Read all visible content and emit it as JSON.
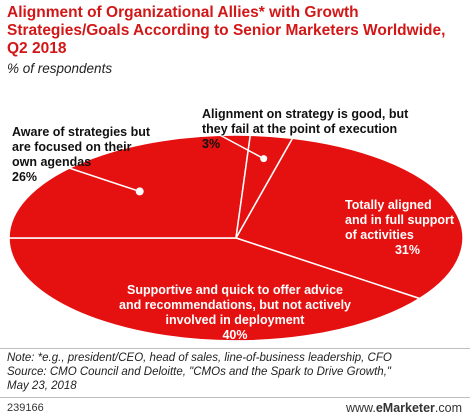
{
  "header": {
    "title": "Alignment of Organizational Allies* with Growth Strategies/Goals According to Senior Marketers Worldwide, Q2 2018",
    "subtitle": "% of respondents"
  },
  "chart_data": {
    "type": "pie",
    "title": "Alignment of Organizational Allies* with Growth Strategies/Goals According to Senior Marketers Worldwide, Q2 2018",
    "subtitle": "% of respondents",
    "slices": [
      {
        "label": "Totally aligned and in full support of activities",
        "label_display": "Totally aligned\nand in full support\nof activities",
        "value": 31,
        "value_label": "31%"
      },
      {
        "label": "Supportive and quick to offer advice and recommendations, but not actively involved in deployment",
        "label_display": "Supportive and quick to offer advice\nand recommendations, but not actively\ninvolved in deployment",
        "value": 40,
        "value_label": "40%"
      },
      {
        "label": "Aware of strategies but are focused on their own agendas",
        "label_display": "Aware of strategies but\nare focused on their\nown agendas",
        "value": 26,
        "value_label": "26%"
      },
      {
        "label": "Alignment on strategy is good, but they fail at the point of execution",
        "label_display": "Alignment on strategy is good, but\nthey fail at the point of execution",
        "value": 3,
        "value_label": "3%"
      }
    ],
    "colors": {
      "slice_fill": "#e51010",
      "slice_border": "#ffffff",
      "leader": "#ffffff",
      "title": "#d11717"
    }
  },
  "footer": {
    "note": "Note: *e.g., president/CEO, head of sales, line-of-business leadership, CFO\nSource: CMO Council and Deloitte, \"CMOs and the Spark to Drive Growth,\"\nMay 23, 2018",
    "chart_id": "239166",
    "brand_prefix": "www.",
    "brand_name": "eMarketer",
    "brand_suffix": ".com"
  }
}
